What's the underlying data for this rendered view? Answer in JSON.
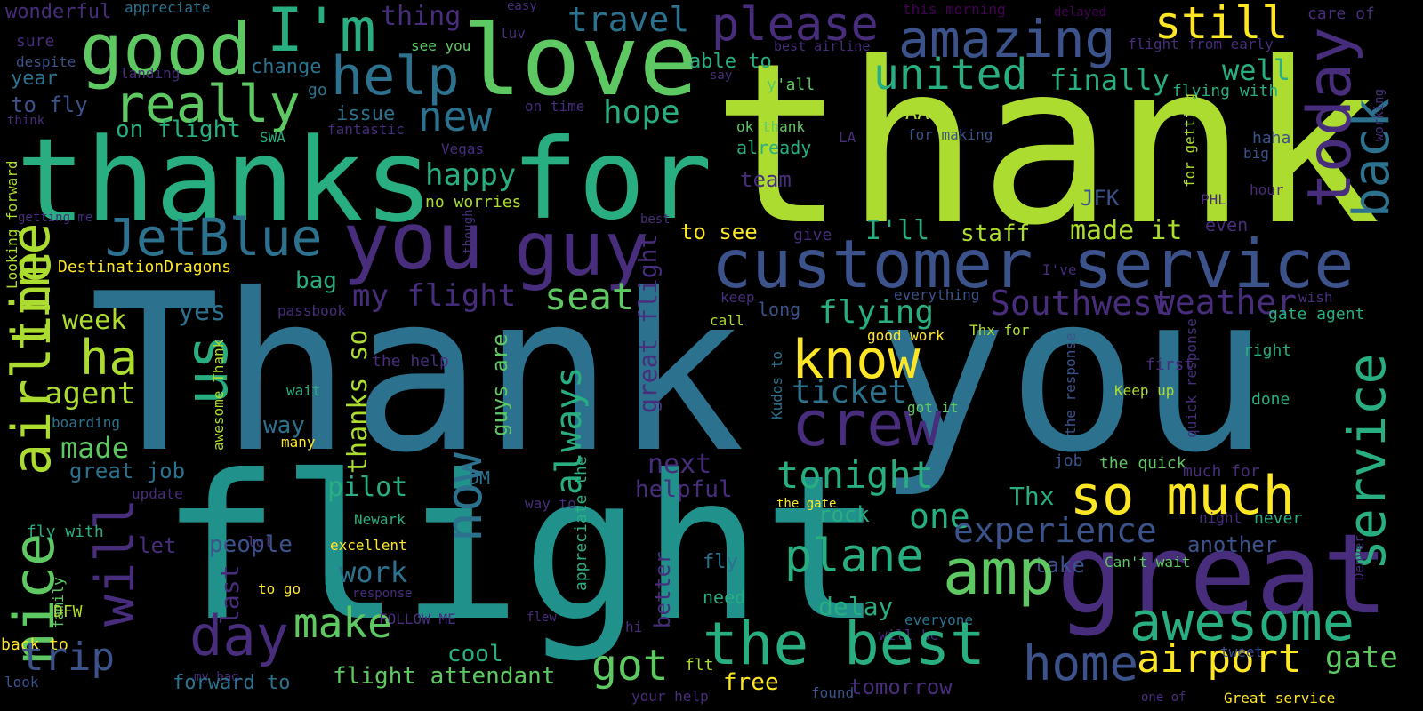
{
  "palette": {
    "background": "#000000",
    "purple": "#440154",
    "indigo": "#472d7b",
    "blue": "#3b528b",
    "steel": "#2c728e",
    "teal": "#21918c",
    "sea": "#28ae80",
    "green": "#5ec962",
    "lime": "#addc30",
    "yellow": "#fde725"
  },
  "words": [
    {
      "text": "Thank you",
      "color": "steel"
    },
    {
      "text": "thank",
      "color": "lime"
    },
    {
      "text": "flight",
      "color": "teal"
    },
    {
      "text": "thanks",
      "color": "sea"
    },
    {
      "text": "for",
      "color": "sea"
    },
    {
      "text": "love",
      "color": "green"
    },
    {
      "text": "good",
      "color": "green"
    },
    {
      "text": "I'm",
      "color": "sea"
    },
    {
      "text": "great",
      "color": "indigo"
    },
    {
      "text": "you",
      "color": "indigo"
    },
    {
      "text": "guy",
      "color": "indigo"
    },
    {
      "text": "customer service",
      "color": "blue"
    },
    {
      "text": "amazing",
      "color": "blue"
    },
    {
      "text": "please",
      "color": "indigo"
    },
    {
      "text": "travel",
      "color": "steel"
    },
    {
      "text": "thing",
      "color": "indigo"
    },
    {
      "text": "wonderful",
      "color": "indigo"
    },
    {
      "text": "appreciate",
      "color": "steel"
    },
    {
      "text": "easy",
      "color": "indigo"
    },
    {
      "text": "luv",
      "color": "indigo"
    },
    {
      "text": "this morning",
      "color": "purple"
    },
    {
      "text": "delayed",
      "color": "purple"
    },
    {
      "text": "still",
      "color": "yellow"
    },
    {
      "text": "care of",
      "color": "indigo"
    },
    {
      "text": "today",
      "color": "indigo"
    },
    {
      "text": "back",
      "color": "steel"
    },
    {
      "text": "service",
      "color": "sea"
    },
    {
      "text": "sure",
      "color": "indigo"
    },
    {
      "text": "despite",
      "color": "blue"
    },
    {
      "text": "landing",
      "color": "indigo"
    },
    {
      "text": "year",
      "color": "steel"
    },
    {
      "text": "to fly",
      "color": "blue"
    },
    {
      "text": "think",
      "color": "indigo"
    },
    {
      "text": "really",
      "color": "green"
    },
    {
      "text": "on flight",
      "color": "sea"
    },
    {
      "text": "change",
      "color": "steel"
    },
    {
      "text": "see you",
      "color": "green"
    },
    {
      "text": "help",
      "color": "steel"
    },
    {
      "text": "able to",
      "color": "sea"
    },
    {
      "text": "go",
      "color": "steel"
    },
    {
      "text": "issue",
      "color": "steel"
    },
    {
      "text": "fantastic",
      "color": "indigo"
    },
    {
      "text": "new",
      "color": "steel"
    },
    {
      "text": "on time",
      "color": "indigo"
    },
    {
      "text": "Vegas",
      "color": "indigo"
    },
    {
      "text": "hope",
      "color": "sea"
    },
    {
      "text": "y'all",
      "color": "green"
    },
    {
      "text": "best airline",
      "color": "indigo"
    },
    {
      "text": "say",
      "color": "indigo"
    },
    {
      "text": "united",
      "color": "sea"
    },
    {
      "text": "finally",
      "color": "sea"
    },
    {
      "text": "well",
      "color": "sea"
    },
    {
      "text": "flight from early",
      "color": "indigo"
    },
    {
      "text": "flying with",
      "color": "sea"
    },
    {
      "text": "working",
      "color": "indigo"
    },
    {
      "text": "for getting",
      "color": "lime"
    },
    {
      "text": "AA",
      "color": "lime"
    },
    {
      "text": "ok thank",
      "color": "green"
    },
    {
      "text": "already",
      "color": "sea"
    },
    {
      "text": "LA",
      "color": "indigo"
    },
    {
      "text": "for making",
      "color": "blue"
    },
    {
      "text": "haha",
      "color": "blue"
    },
    {
      "text": "big",
      "color": "blue"
    },
    {
      "text": "hour",
      "color": "indigo"
    },
    {
      "text": "SWA",
      "color": "sea"
    },
    {
      "text": "team",
      "color": "indigo"
    },
    {
      "text": "happy",
      "color": "sea"
    },
    {
      "text": "no worries",
      "color": "lime"
    },
    {
      "text": "JFK",
      "color": "blue"
    },
    {
      "text": "PHL",
      "color": "indigo"
    },
    {
      "text": "JetBlue",
      "color": "steel"
    },
    {
      "text": "airline",
      "color": "lime"
    },
    {
      "text": "time",
      "color": "lime"
    },
    {
      "text": "getting me",
      "color": "indigo"
    },
    {
      "text": "Looking forward",
      "color": "lime"
    },
    {
      "text": "DestinationDragons",
      "color": "yellow"
    },
    {
      "text": "will",
      "color": "indigo"
    },
    {
      "text": "bag",
      "color": "sea"
    },
    {
      "text": "though",
      "color": "indigo"
    },
    {
      "text": "best",
      "color": "indigo"
    },
    {
      "text": "give",
      "color": "indigo"
    },
    {
      "text": "to see",
      "color": "yellow"
    },
    {
      "text": "I'll",
      "color": "sea"
    },
    {
      "text": "staff",
      "color": "lime"
    },
    {
      "text": "made it",
      "color": "lime"
    },
    {
      "text": "even",
      "color": "indigo"
    },
    {
      "text": "I've",
      "color": "indigo"
    },
    {
      "text": "my flight",
      "color": "indigo"
    },
    {
      "text": "seat",
      "color": "green"
    },
    {
      "text": "passbook",
      "color": "indigo"
    },
    {
      "text": "us",
      "color": "sea"
    },
    {
      "text": "ha",
      "color": "lime"
    },
    {
      "text": "week",
      "color": "lime"
    },
    {
      "text": "yes",
      "color": "steel"
    },
    {
      "text": "keep",
      "color": "indigo"
    },
    {
      "text": "call",
      "color": "lime"
    },
    {
      "text": "long",
      "color": "blue"
    },
    {
      "text": "flying",
      "color": "sea"
    },
    {
      "text": "everything",
      "color": "blue"
    },
    {
      "text": "Southwest",
      "color": "indigo"
    },
    {
      "text": "weather",
      "color": "indigo"
    },
    {
      "text": "wish",
      "color": "indigo"
    },
    {
      "text": "gate agent",
      "color": "sea"
    },
    {
      "text": "know",
      "color": "yellow"
    },
    {
      "text": "good work",
      "color": "yellow"
    },
    {
      "text": "Thx for",
      "color": "lime"
    },
    {
      "text": "agent",
      "color": "lime"
    },
    {
      "text": "the help",
      "color": "indigo"
    },
    {
      "text": "thanks so",
      "color": "lime"
    },
    {
      "text": "always",
      "color": "sea"
    },
    {
      "text": "guys are",
      "color": "green"
    },
    {
      "text": "great flight",
      "color": "indigo"
    },
    {
      "text": "awesome Thank",
      "color": "lime"
    },
    {
      "text": "wait",
      "color": "sea"
    },
    {
      "text": "boarding",
      "color": "steel"
    },
    {
      "text": "made",
      "color": "green"
    },
    {
      "text": "many",
      "color": "yellow"
    },
    {
      "text": "way",
      "color": "steel"
    },
    {
      "text": "crew",
      "color": "indigo"
    },
    {
      "text": "ticket",
      "color": "steel"
    },
    {
      "text": "got it",
      "color": "green"
    },
    {
      "text": "Keep up",
      "color": "lime"
    },
    {
      "text": "first",
      "color": "indigo"
    },
    {
      "text": "right",
      "color": "sea"
    },
    {
      "text": "done",
      "color": "sea"
    },
    {
      "text": "the response",
      "color": "blue"
    },
    {
      "text": "quick response",
      "color": "indigo"
    },
    {
      "text": "Kudos to",
      "color": "steel"
    },
    {
      "text": "great job",
      "color": "steel"
    },
    {
      "text": "next",
      "color": "indigo"
    },
    {
      "text": "DM",
      "color": "steel"
    },
    {
      "text": "now",
      "color": "steel"
    },
    {
      "text": "tonight",
      "color": "sea"
    },
    {
      "text": "job",
      "color": "blue"
    },
    {
      "text": "the quick",
      "color": "green"
    },
    {
      "text": "much for",
      "color": "indigo"
    },
    {
      "text": "so much",
      "color": "yellow"
    },
    {
      "text": "nice",
      "color": "green"
    },
    {
      "text": "update",
      "color": "indigo"
    },
    {
      "text": "pilot",
      "color": "sea"
    },
    {
      "text": "Newark",
      "color": "sea"
    },
    {
      "text": "way to",
      "color": "indigo"
    },
    {
      "text": "helpful",
      "color": "indigo"
    },
    {
      "text": "appreciate the",
      "color": "sea"
    },
    {
      "text": "the gate",
      "color": "yellow"
    },
    {
      "text": "rock",
      "color": "sea"
    },
    {
      "text": "Thx",
      "color": "sea"
    },
    {
      "text": "one",
      "color": "sea"
    },
    {
      "text": "experience",
      "color": "blue"
    },
    {
      "text": "night",
      "color": "indigo"
    },
    {
      "text": "never",
      "color": "sea"
    },
    {
      "text": "Denver",
      "color": "indigo"
    },
    {
      "text": "lot",
      "color": "indigo"
    },
    {
      "text": "fly with",
      "color": "sea"
    },
    {
      "text": "let",
      "color": "indigo"
    },
    {
      "text": "people",
      "color": "blue"
    },
    {
      "text": "excellent",
      "color": "yellow"
    },
    {
      "text": "work",
      "color": "steel"
    },
    {
      "text": "another",
      "color": "blue"
    },
    {
      "text": "take",
      "color": "blue"
    },
    {
      "text": "Can't wait",
      "color": "green"
    },
    {
      "text": "plane",
      "color": "sea"
    },
    {
      "text": "fly",
      "color": "steel"
    },
    {
      "text": "family",
      "color": "green"
    },
    {
      "text": "to go",
      "color": "yellow"
    },
    {
      "text": "last",
      "color": "indigo"
    },
    {
      "text": "response",
      "color": "indigo"
    },
    {
      "text": "amp",
      "color": "green"
    },
    {
      "text": "need",
      "color": "sea"
    },
    {
      "text": "better",
      "color": "indigo"
    },
    {
      "text": "delay",
      "color": "sea"
    },
    {
      "text": "awesome",
      "color": "sea"
    },
    {
      "text": "DFW",
      "color": "lime"
    },
    {
      "text": "day",
      "color": "indigo"
    },
    {
      "text": "make",
      "color": "green"
    },
    {
      "text": "FOLLOW ME",
      "color": "indigo"
    },
    {
      "text": "flew",
      "color": "indigo"
    },
    {
      "text": "hi",
      "color": "indigo"
    },
    {
      "text": "everyone",
      "color": "steel"
    },
    {
      "text": "will be",
      "color": "indigo"
    },
    {
      "text": "the best",
      "color": "sea"
    },
    {
      "text": "got",
      "color": "green"
    },
    {
      "text": "cool",
      "color": "sea"
    },
    {
      "text": "back to",
      "color": "yellow"
    },
    {
      "text": "trip",
      "color": "blue"
    },
    {
      "text": "look",
      "color": "blue"
    },
    {
      "text": "my bag",
      "color": "indigo"
    },
    {
      "text": "forward to",
      "color": "steel"
    },
    {
      "text": "flight attendant",
      "color": "green"
    },
    {
      "text": "flt",
      "color": "lime"
    },
    {
      "text": "free",
      "color": "yellow"
    },
    {
      "text": "your help",
      "color": "indigo"
    },
    {
      "text": "found",
      "color": "blue"
    },
    {
      "text": "tomorrow",
      "color": "indigo"
    },
    {
      "text": "home",
      "color": "blue"
    },
    {
      "text": "airport",
      "color": "yellow"
    },
    {
      "text": "tweet",
      "color": "blue"
    },
    {
      "text": "gate",
      "color": "green"
    },
    {
      "text": "one of",
      "color": "indigo"
    },
    {
      "text": "Great service",
      "color": "yellow"
    }
  ]
}
